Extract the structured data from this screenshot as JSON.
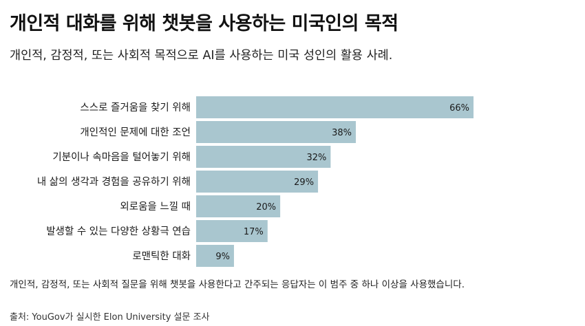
{
  "title": "개인적 대화를 위해 챗봇을 사용하는 미국인의 목적",
  "subtitle": "개인적, 감정적, 또는 사회적 목적으로 AI를 사용하는 미국 성인의 활용 사례.",
  "footnote": "개인적, 감정적, 또는 사회적 질문을 위해 챗봇을 사용한다고 간주되는 응답자는 이 범주 중 하나 이상을 사용했습니다.",
  "source": "출처: YouGov가 실시한 Elon University 설문 조사",
  "colors": {
    "bar": "#a9c6cf",
    "text": "#1a1a1a"
  },
  "chart_data": {
    "type": "bar",
    "orientation": "horizontal",
    "categories": [
      "스스로 즐거움을 찾기 위해",
      "개인적인 문제에 대한 조언",
      "기분이나 속마음을 털어놓기 위해",
      "내 삶의 생각과 경험을 공유하기 위해",
      "외로움을 느낄 때",
      "발생할 수 있는 다양한 상황극 연습",
      "로맨틱한 대화"
    ],
    "values": [
      66,
      38,
      32,
      29,
      20,
      17,
      9
    ],
    "value_labels": [
      "66%",
      "38%",
      "32%",
      "29%",
      "20%",
      "17%",
      "9%"
    ],
    "unit": "%",
    "xlim": [
      0,
      100
    ],
    "grid": false,
    "legend": "none"
  }
}
